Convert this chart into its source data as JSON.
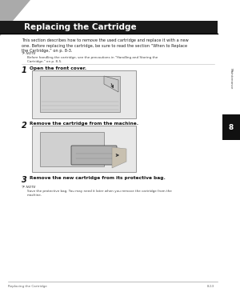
{
  "bg_color": "#ffffff",
  "title": "Replacing the Cartridge",
  "title_bg": "#1a1a1a",
  "title_color": "#ffffff",
  "body_text": "This section describes how to remove the used cartridge and replace it with a new\none. Before replacing the cartridge, be sure to read the section “When to Replace\nthe Cartridge,” on p. 8-3.",
  "note1_label": "ℙ NOTE",
  "note1_text": "Before handling the cartridge, see the precautions in “Handling and Storing the\nCartridge,” on p. 8-5.",
  "step1_num": "1",
  "step1_text": "Open the front cover.",
  "step2_num": "2",
  "step2_text": "Remove the cartridge from the machine.",
  "step3_num": "3",
  "step3_text": "Remove the new cartridge from its protective bag.",
  "note3_label": "ℙ NOTE",
  "note3_text": "Save the protective bag. You may need it later when you remove the cartridge from the\nmachine.",
  "footer_left": "Replacing the Cartridge",
  "footer_right": "8-13",
  "tab_color": "#111111",
  "tab_text": "8",
  "tab_label": "Maintenance",
  "triangle_color": "#aaaaaa"
}
